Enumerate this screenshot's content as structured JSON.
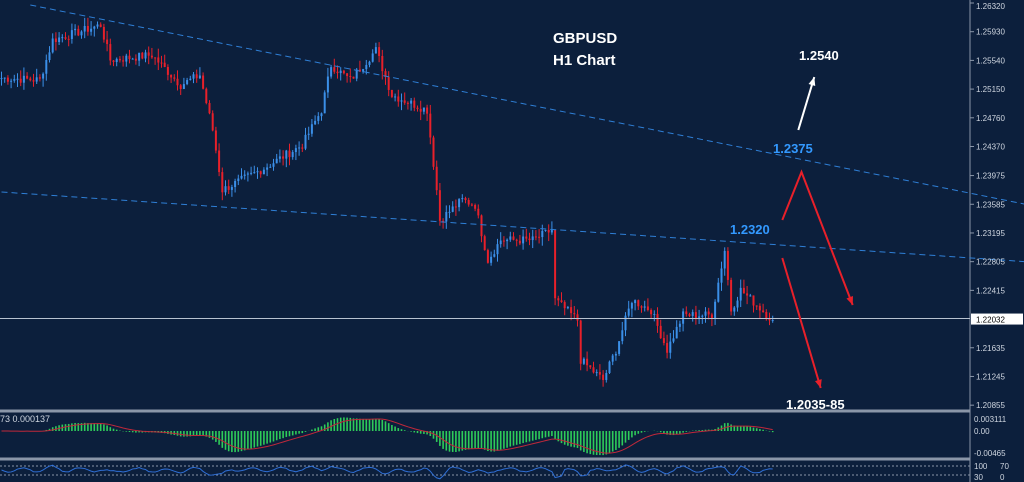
{
  "chart_data": {
    "type": "candlestick",
    "symbol_title": "GBPUSD",
    "timeframe_title": "H1 Chart",
    "ylim": [
      1.2047,
      1.2632
    ],
    "y_ticks": [
      "1.26320",
      "1.25930",
      "1.25540",
      "1.25150",
      "1.24760",
      "1.24370",
      "1.23975",
      "1.23585",
      "1.23195",
      "1.22805",
      "1.22415",
      "1.21635",
      "1.21245",
      "1.20855"
    ],
    "current_price": "1.22032",
    "price_path": [
      {
        "bar": 0,
        "price": 1.25301
      },
      {
        "bar": 12,
        "price": 1.25274
      },
      {
        "bar": 16,
        "price": 1.25817
      },
      {
        "bar": 31,
        "price": 1.26021
      },
      {
        "bar": 34,
        "price": 1.25545
      },
      {
        "bar": 47,
        "price": 1.25613
      },
      {
        "bar": 56,
        "price": 1.25206
      },
      {
        "bar": 62,
        "price": 1.25342
      },
      {
        "bar": 66,
        "price": 1.24594
      },
      {
        "bar": 69,
        "price": 1.23779
      },
      {
        "bar": 81,
        "price": 1.2405
      },
      {
        "bar": 94,
        "price": 1.2439
      },
      {
        "bar": 100,
        "price": 1.24866
      },
      {
        "bar": 103,
        "price": 1.25477
      },
      {
        "bar": 109,
        "price": 1.25274
      },
      {
        "bar": 117,
        "price": 1.25681
      },
      {
        "bar": 122,
        "price": 1.2507
      },
      {
        "bar": 133,
        "price": 1.24866
      },
      {
        "bar": 136,
        "price": 1.23779
      },
      {
        "bar": 137,
        "price": 1.23371
      },
      {
        "bar": 144,
        "price": 1.23643
      },
      {
        "bar": 148,
        "price": 1.23575
      },
      {
        "bar": 152,
        "price": 1.22827
      },
      {
        "bar": 156,
        "price": 1.23099
      },
      {
        "bar": 166,
        "price": 1.23099
      },
      {
        "bar": 172,
        "price": 1.23235
      },
      {
        "bar": 173,
        "price": 1.22284
      },
      {
        "bar": 180,
        "price": 1.22012
      },
      {
        "bar": 181,
        "price": 1.21468
      },
      {
        "bar": 188,
        "price": 1.21197
      },
      {
        "bar": 192,
        "price": 1.21605
      },
      {
        "bar": 197,
        "price": 1.22284
      },
      {
        "bar": 203,
        "price": 1.22148
      },
      {
        "bar": 208,
        "price": 1.21605
      },
      {
        "bar": 213,
        "price": 1.2208
      },
      {
        "bar": 222,
        "price": 1.2208
      },
      {
        "bar": 226,
        "price": 1.22963
      },
      {
        "bar": 228,
        "price": 1.22148
      },
      {
        "bar": 231,
        "price": 1.2242
      },
      {
        "bar": 241,
        "price": 1.22012
      }
    ],
    "trendlines": [
      {
        "from": {
          "bar": 9,
          "price": 1.26293
        },
        "to": {
          "bar": 320,
          "price": 1.23585
        }
      },
      {
        "from": {
          "bar": 0,
          "price": 1.23752
        },
        "to": {
          "bar": 320,
          "price": 1.22805
        }
      }
    ],
    "annotations": [
      {
        "text": "1.2540",
        "color": "#ffffff"
      },
      {
        "text": "1.2375",
        "color": "#3399ff"
      },
      {
        "text": "1.2320",
        "color": "#3399ff"
      },
      {
        "text": "1.2035-85",
        "color": "#ffffff"
      }
    ],
    "arrows": [
      {
        "color": "#ffffff",
        "points": [
          {
            "bar": 249,
            "price": 1.24594
          },
          {
            "bar": 254,
            "price": 1.25314
          }
        ]
      },
      {
        "color": "#e8202a",
        "points": [
          {
            "bar": 244,
            "price": 1.23371
          },
          {
            "bar": 250,
            "price": 1.24023
          },
          {
            "bar": 266,
            "price": 1.22216
          }
        ]
      },
      {
        "color": "#e8202a",
        "points": [
          {
            "bar": 244,
            "price": 1.22855
          },
          {
            "bar": 256,
            "price": 1.21088
          }
        ]
      }
    ],
    "indicator": {
      "label": "73 0.000137",
      "ticks": [
        "0.003111",
        "0.00",
        "-0.00465"
      ]
    },
    "oscillator": {
      "ticks": [
        "100",
        "70",
        "30",
        "0"
      ]
    },
    "colors": {
      "background": "#0c1f3c",
      "bull": "#3b8fe8",
      "bear": "#e8202a",
      "trendline": "#2f7fd6",
      "histogram": "#2ecc5a",
      "signal": "#c0283a"
    }
  }
}
